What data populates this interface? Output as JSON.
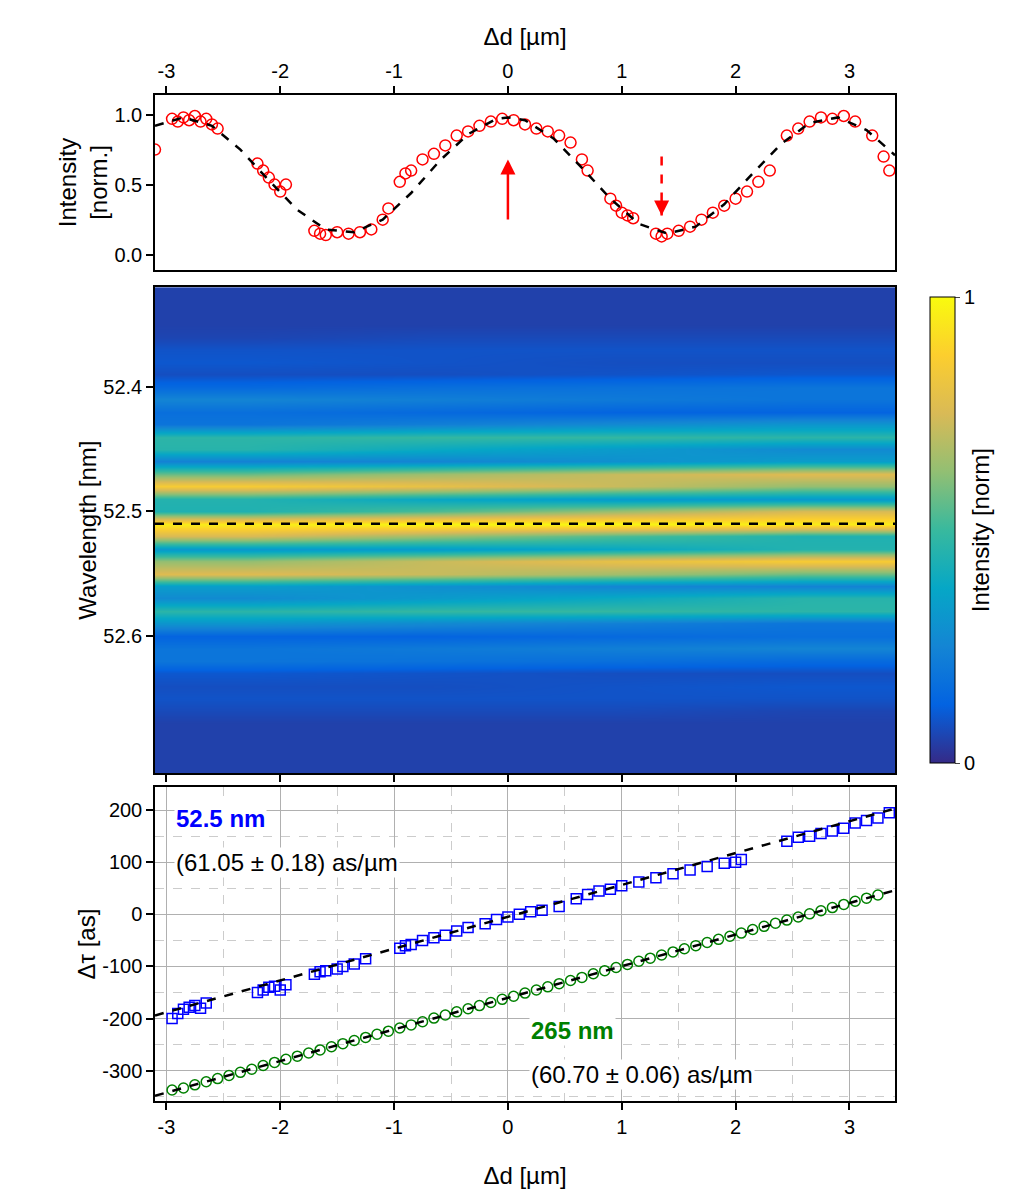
{
  "chart_data": [
    {
      "type": "scatter",
      "x_label": "Δd [µm]",
      "y_label": "Intensity [norm.]",
      "xlim": [
        -3.1,
        3.4
      ],
      "xticks": [
        -3,
        -2,
        -1,
        0,
        1,
        2,
        3
      ],
      "ylim": [
        -0.11,
        1.14
      ],
      "yticks": [
        {
          "value": 0,
          "label": "0.0"
        },
        {
          "value": 0.5,
          "label": "0.5"
        },
        {
          "value": 1,
          "label": "1.0"
        }
      ],
      "series": [
        {
          "type": "scatter",
          "color": "#ff0000",
          "marker": "circle-open",
          "x": [
            -3.1,
            -2.95,
            -2.9,
            -2.85,
            -2.8,
            -2.75,
            -2.7,
            -2.65,
            -2.6,
            -2.55,
            -2.2,
            -2.15,
            -2.1,
            -2.05,
            -2.0,
            -1.95,
            -1.7,
            -1.65,
            -1.6,
            -1.5,
            -1.4,
            -1.3,
            -1.2,
            -1.1,
            -1.05,
            -0.95,
            -0.9,
            -0.85,
            -0.75,
            -0.65,
            -0.55,
            -0.45,
            -0.35,
            -0.25,
            -0.15,
            -0.05,
            0.05,
            0.15,
            0.25,
            0.35,
            0.45,
            0.55,
            0.65,
            0.7,
            0.9,
            0.95,
            1.0,
            1.05,
            1.1,
            1.3,
            1.35,
            1.4,
            1.5,
            1.6,
            1.7,
            1.8,
            1.9,
            2.0,
            2.1,
            2.2,
            2.3,
            2.45,
            2.55,
            2.65,
            2.75,
            2.85,
            2.95,
            3.05,
            3.2,
            3.3,
            3.35
          ],
          "values": [
            0.75,
            0.97,
            0.95,
            0.98,
            0.96,
            0.99,
            0.95,
            0.97,
            0.93,
            0.9,
            0.65,
            0.6,
            0.55,
            0.5,
            0.45,
            0.5,
            0.17,
            0.15,
            0.14,
            0.16,
            0.15,
            0.16,
            0.18,
            0.25,
            0.33,
            0.52,
            0.58,
            0.6,
            0.68,
            0.72,
            0.78,
            0.85,
            0.88,
            0.92,
            0.95,
            0.97,
            0.96,
            0.93,
            0.9,
            0.88,
            0.85,
            0.8,
            0.68,
            0.6,
            0.4,
            0.35,
            0.3,
            0.28,
            0.26,
            0.15,
            0.13,
            0.15,
            0.17,
            0.2,
            0.25,
            0.3,
            0.35,
            0.4,
            0.45,
            0.52,
            0.6,
            0.85,
            0.9,
            0.95,
            0.98,
            0.97,
            0.99,
            0.95,
            0.85,
            0.7,
            0.6
          ]
        },
        {
          "type": "line",
          "color": "#000000",
          "line_style": "dash",
          "x": [
            -3.1,
            -2.85,
            -2.6,
            -2.35,
            -2.1,
            -1.85,
            -1.6,
            -1.35,
            -1.1,
            -0.85,
            -0.6,
            -0.35,
            -0.1,
            0,
            0.15,
            0.4,
            0.65,
            0.9,
            1.15,
            1.4,
            1.65,
            1.9,
            2.15,
            2.4,
            2.65,
            2.9,
            3.15,
            3.4
          ],
          "values": [
            0.92,
            0.98,
            0.92,
            0.75,
            0.53,
            0.32,
            0.18,
            0.16,
            0.25,
            0.44,
            0.67,
            0.86,
            0.97,
            0.98,
            0.96,
            0.83,
            0.62,
            0.4,
            0.22,
            0.15,
            0.2,
            0.36,
            0.58,
            0.79,
            0.94,
            0.98,
            0.89,
            0.71
          ]
        }
      ],
      "arrows": [
        {
          "x": 0,
          "y_start": 0.24,
          "y_end": 0.68,
          "color": "#ff0000",
          "line_style": "solid"
        },
        {
          "x": 1.35,
          "y_start": 0.7,
          "y_end": 0.28,
          "color": "#ff0000",
          "line_style": "dash"
        }
      ]
    },
    {
      "type": "heatmap",
      "y_label": "Wavelength [nm]",
      "xlim": [
        -3.1,
        3.4
      ],
      "xticks": [
        -3,
        -2,
        -1,
        0,
        1,
        2,
        3
      ],
      "tick_labels": "y",
      "ylim": [
        52.71,
        52.32
      ],
      "yticks": [
        52.4,
        52.5,
        52.6
      ],
      "hline": 52.51,
      "x": [
        -2.29,
        -0.66,
        0.96,
        2.59
      ],
      "y": [
        52.32,
        52.33,
        52.34,
        52.35,
        52.36,
        52.37,
        52.38,
        52.39,
        52.4,
        52.41,
        52.42,
        52.43,
        52.44,
        52.45,
        52.46,
        52.47,
        52.48,
        52.49,
        52.5,
        52.51,
        52.52,
        52.53,
        52.54,
        52.55,
        52.56,
        52.57,
        52.58,
        52.59,
        52.6,
        52.61,
        52.62,
        52.63,
        52.64,
        52.65,
        52.66,
        52.67,
        52.68,
        52.69,
        52.7,
        52.71
      ],
      "z": [
        [
          0.05,
          0.05,
          0.05,
          0.05
        ],
        [
          0.05,
          0.05,
          0.05,
          0.05
        ],
        [
          0.05,
          0.05,
          0.05,
          0.05
        ],
        [
          0.05,
          0.05,
          0.05,
          0.05
        ],
        [
          0.06,
          0.07,
          0.07,
          0.07
        ],
        [
          0.09,
          0.09,
          0.09,
          0.09
        ],
        [
          0.1,
          0.09,
          0.08,
          0.08
        ],
        [
          0.08,
          0.08,
          0.09,
          0.1
        ],
        [
          0.15,
          0.17,
          0.18,
          0.19
        ],
        [
          0.25,
          0.23,
          0.21,
          0.19
        ],
        [
          0.17,
          0.15,
          0.13,
          0.13
        ],
        [
          0.19,
          0.23,
          0.27,
          0.31
        ],
        [
          0.47,
          0.49,
          0.49,
          0.47
        ],
        [
          0.46,
          0.39,
          0.33,
          0.27
        ],
        [
          0.24,
          0.25,
          0.29,
          0.34
        ],
        [
          0.57,
          0.65,
          0.72,
          0.77
        ],
        [
          0.86,
          0.8,
          0.72,
          0.63
        ],
        [
          0.45,
          0.38,
          0.33,
          0.32
        ],
        [
          0.44,
          0.53,
          0.64,
          0.75
        ],
        [
          0.96,
          0.99,
          0.99,
          0.96
        ],
        [
          0.75,
          0.64,
          0.53,
          0.44
        ],
        [
          0.32,
          0.33,
          0.38,
          0.45
        ],
        [
          0.63,
          0.72,
          0.8,
          0.86
        ],
        [
          0.77,
          0.72,
          0.65,
          0.57
        ],
        [
          0.34,
          0.29,
          0.25,
          0.24
        ],
        [
          0.27,
          0.33,
          0.39,
          0.46
        ],
        [
          0.47,
          0.49,
          0.49,
          0.47
        ],
        [
          0.31,
          0.27,
          0.23,
          0.19
        ],
        [
          0.13,
          0.13,
          0.15,
          0.17
        ],
        [
          0.19,
          0.21,
          0.23,
          0.25
        ],
        [
          0.19,
          0.18,
          0.17,
          0.15
        ],
        [
          0.1,
          0.09,
          0.08,
          0.08
        ],
        [
          0.08,
          0.08,
          0.09,
          0.1
        ],
        [
          0.09,
          0.09,
          0.09,
          0.09
        ],
        [
          0.07,
          0.07,
          0.07,
          0.06
        ],
        [
          0.05,
          0.05,
          0.05,
          0.05
        ],
        [
          0.05,
          0.05,
          0.05,
          0.05
        ],
        [
          0.05,
          0.05,
          0.05,
          0.05
        ],
        [
          0.05,
          0.05,
          0.05,
          0.05
        ],
        [
          0.05,
          0.05,
          0.05,
          0.05
        ]
      ],
      "colorbar": {
        "title": "Intensity [norm]",
        "range": [
          0,
          1
        ],
        "ticks": [
          0,
          1
        ]
      }
    },
    {
      "type": "scatter",
      "x_label": "Δd [µm]",
      "y_label": "Δτ [as]",
      "xlim": [
        -3.1,
        3.4
      ],
      "xticks": [
        -3,
        -2,
        -1,
        0,
        1,
        2,
        3
      ],
      "ylim": [
        -358,
        244
      ],
      "yticks": [
        -300,
        -200,
        -100,
        0,
        100,
        200
      ],
      "grid": true,
      "minor_xticks": [
        -2.5,
        -1.5,
        -0.5,
        0.5,
        1.5,
        2.5
      ],
      "minor_yticks": [
        -350,
        -250,
        -150,
        -50,
        50,
        150
      ],
      "series": [
        {
          "name": "52.5 nm",
          "label": "(61.05 ± 0.18) as/µm",
          "color": "#0000ff",
          "marker": "square-open",
          "x": [
            -2.95,
            -2.9,
            -2.85,
            -2.8,
            -2.75,
            -2.7,
            -2.65,
            -2.2,
            -2.15,
            -2.1,
            -2.05,
            -2.0,
            -1.95,
            -1.7,
            -1.65,
            -1.6,
            -1.5,
            -1.45,
            -1.35,
            -1.25,
            -0.95,
            -0.9,
            -0.85,
            -0.75,
            -0.65,
            -0.55,
            -0.45,
            -0.35,
            -0.2,
            -0.1,
            0.0,
            0.1,
            0.2,
            0.3,
            0.45,
            0.6,
            0.7,
            0.8,
            0.9,
            1.0,
            1.15,
            1.3,
            1.45,
            1.6,
            1.75,
            1.9,
            2.0,
            2.05,
            2.45,
            2.55,
            2.65,
            2.75,
            2.85,
            2.95,
            3.05,
            3.15,
            3.25,
            3.35
          ],
          "values": [
            -200,
            -190,
            -182,
            -178,
            -175,
            -180,
            -170,
            -150,
            -145,
            -140,
            -138,
            -145,
            -135,
            -115,
            -110,
            -108,
            -105,
            -100,
            -95,
            -85,
            -65,
            -60,
            -58,
            -50,
            -45,
            -40,
            -32,
            -25,
            -18,
            -10,
            -5,
            0,
            5,
            8,
            15,
            30,
            38,
            45,
            48,
            55,
            62,
            70,
            78,
            85,
            92,
            98,
            100,
            105,
            140,
            148,
            150,
            155,
            160,
            165,
            175,
            180,
            185,
            195
          ],
          "fit": {
            "x": [
              -3.1,
              3.4
            ],
            "values": [
              -194,
              203
            ],
            "color": "#000000",
            "line_style": "dash"
          }
        },
        {
          "name": "265 nm",
          "label": "(60.70 ± 0.06) as/µm",
          "color": "#008000",
          "marker": "circle-open",
          "x": [
            -2.95,
            -2.85,
            -2.75,
            -2.65,
            -2.55,
            -2.45,
            -2.35,
            -2.25,
            -2.15,
            -2.05,
            -1.95,
            -1.85,
            -1.75,
            -1.65,
            -1.55,
            -1.45,
            -1.35,
            -1.25,
            -1.15,
            -1.05,
            -0.95,
            -0.85,
            -0.75,
            -0.65,
            -0.55,
            -0.45,
            -0.35,
            -0.25,
            -0.15,
            -0.05,
            0.05,
            0.15,
            0.25,
            0.35,
            0.45,
            0.55,
            0.65,
            0.75,
            0.85,
            0.95,
            1.05,
            1.15,
            1.25,
            1.35,
            1.45,
            1.55,
            1.65,
            1.75,
            1.85,
            1.95,
            2.05,
            2.15,
            2.25,
            2.35,
            2.45,
            2.55,
            2.65,
            2.75,
            2.85,
            2.95,
            3.05,
            3.15,
            3.25
          ],
          "values": [
            -337,
            -333,
            -327,
            -321,
            -315,
            -309,
            -303,
            -297,
            -290,
            -284,
            -278,
            -272,
            -266,
            -260,
            -254,
            -248,
            -242,
            -236,
            -230,
            -224,
            -218,
            -212,
            -206,
            -199,
            -193,
            -187,
            -181,
            -175,
            -169,
            -163,
            -157,
            -151,
            -145,
            -139,
            -133,
            -127,
            -121,
            -114,
            -108,
            -102,
            -96,
            -90,
            -84,
            -78,
            -72,
            -66,
            -60,
            -54,
            -48,
            -42,
            -36,
            -29,
            -23,
            -17,
            -11,
            -5,
            1,
            7,
            13,
            19,
            25,
            31,
            37
          ],
          "fit": {
            "x": [
              -3.1,
              3.4
            ],
            "values": [
              -348,
              46
            ],
            "color": "#000000",
            "line_style": "dash"
          }
        }
      ]
    }
  ]
}
